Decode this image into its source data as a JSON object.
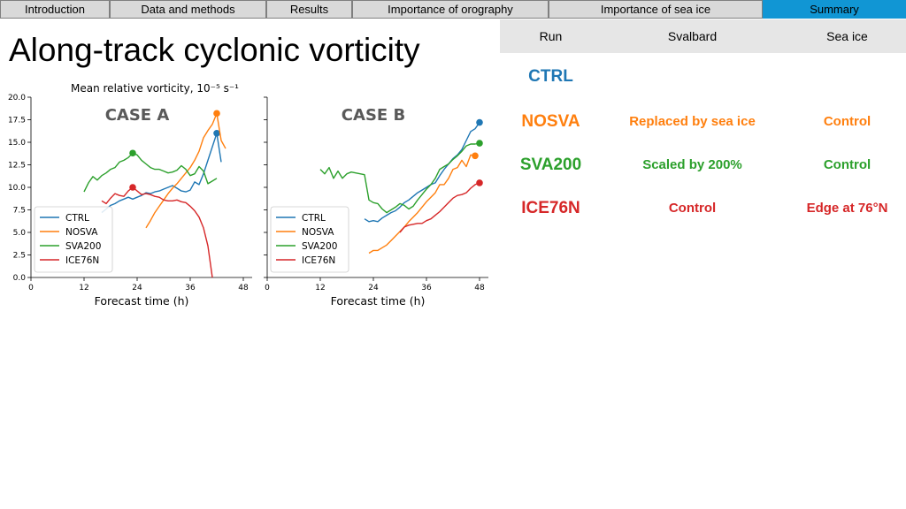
{
  "nav": {
    "tabs": [
      "Introduction",
      "Data and methods",
      "Results",
      "Importance of orography",
      "Importance of sea ice",
      "Summary"
    ],
    "active": "Summary"
  },
  "title": "Along-track cyclonic vorticity",
  "table": {
    "headers": [
      "Run",
      "Svalbard",
      "Sea ice"
    ],
    "rows": [
      {
        "run": "CTRL",
        "svalbard": "",
        "seaice": "",
        "color": "#1f77b4"
      },
      {
        "run": "NOSVA",
        "svalbard": "Replaced by sea ice",
        "seaice": "Control",
        "color": "#ff7f0e"
      },
      {
        "run": "SVA200",
        "svalbard": "Scaled by 200%",
        "seaice": "Control",
        "color": "#2ca02c"
      },
      {
        "run": "ICE76N",
        "svalbard": "Control",
        "seaice": "Edge at 76°N",
        "color": "#d62728"
      }
    ]
  },
  "chart_data": {
    "type": "line",
    "suptitle": "Mean relative vorticity, 10⁻⁵ s⁻¹",
    "xlabel": "Forecast time (h)",
    "xticks": [
      0,
      12,
      24,
      36,
      48
    ],
    "yticks": [
      "0.0",
      "2.5",
      "5.0",
      "7.5",
      "10.0",
      "12.5",
      "15.0",
      "17.5",
      "20.0"
    ],
    "xlim": [
      0,
      50
    ],
    "ylim": [
      0,
      20
    ],
    "series_colors": {
      "CTRL": "#1f77b4",
      "NOSVA": "#ff7f0e",
      "SVA200": "#2ca02c",
      "ICE76N": "#d62728"
    },
    "legend": [
      "CTRL",
      "NOSVA",
      "SVA200",
      "ICE76N"
    ],
    "panels": [
      {
        "label": "CASE A",
        "series": [
          {
            "name": "CTRL",
            "x": [
              16,
              17,
              18,
              19,
              20,
              21,
              22,
              23,
              24,
              25,
              26,
              27,
              28,
              29,
              30,
              31,
              32,
              33,
              34,
              35,
              36,
              37,
              38,
              39,
              40,
              41,
              42,
              43
            ],
            "y": [
              7.2,
              7.6,
              8.0,
              8.2,
              8.5,
              8.7,
              8.9,
              8.7,
              8.9,
              9.1,
              9.4,
              9.3,
              9.5,
              9.6,
              9.8,
              10.0,
              10.2,
              9.9,
              9.6,
              9.5,
              9.7,
              10.6,
              10.3,
              11.5,
              13.0,
              14.5,
              16.0,
              12.8
            ],
            "marker": {
              "x": 42,
              "y": 16.0
            }
          },
          {
            "name": "NOSVA",
            "x": [
              26,
              27,
              28,
              29,
              30,
              31,
              32,
              33,
              34,
              35,
              36,
              37,
              38,
              39,
              40,
              41,
              42,
              43,
              44
            ],
            "y": [
              5.5,
              6.3,
              7.2,
              7.9,
              8.6,
              9.3,
              9.9,
              10.4,
              11.0,
              11.6,
              12.2,
              13.0,
              14.0,
              15.5,
              16.3,
              17.0,
              18.2,
              15.2,
              14.3
            ],
            "marker": {
              "x": 42,
              "y": 18.2
            }
          },
          {
            "name": "SVA200",
            "x": [
              12,
              13,
              14,
              15,
              16,
              17,
              18,
              19,
              20,
              21,
              22,
              23,
              24,
              25,
              26,
              27,
              28,
              29,
              30,
              31,
              32,
              33,
              34,
              35,
              36,
              37,
              38,
              39,
              40,
              41,
              42
            ],
            "y": [
              9.5,
              10.5,
              11.2,
              10.8,
              11.3,
              11.6,
              12.0,
              12.2,
              12.8,
              13.0,
              13.3,
              13.8,
              13.6,
              13.0,
              12.6,
              12.2,
              12.0,
              12.0,
              11.8,
              11.6,
              11.7,
              11.9,
              12.4,
              12.0,
              11.3,
              11.5,
              12.3,
              11.8,
              10.4,
              10.7,
              11.0
            ],
            "marker": {
              "x": 23,
              "y": 13.8
            }
          },
          {
            "name": "ICE76N",
            "x": [
              16,
              17,
              18,
              19,
              20,
              21,
              22,
              23,
              24,
              25,
              26,
              27,
              28,
              29,
              30,
              31,
              32,
              33,
              34,
              35,
              36,
              37,
              38,
              39,
              40,
              41
            ],
            "y": [
              8.5,
              8.2,
              8.8,
              9.3,
              9.1,
              9.0,
              9.6,
              10.0,
              9.6,
              9.2,
              9.3,
              9.2,
              9.0,
              8.9,
              8.6,
              8.5,
              8.5,
              8.6,
              8.4,
              8.3,
              7.9,
              7.4,
              6.7,
              5.5,
              3.5,
              0.0
            ],
            "marker": {
              "x": 23,
              "y": 10.0
            }
          }
        ]
      },
      {
        "label": "CASE B",
        "series": [
          {
            "name": "CTRL",
            "x": [
              22,
              23,
              24,
              25,
              26,
              27,
              28,
              29,
              30,
              31,
              32,
              33,
              34,
              35,
              36,
              37,
              38,
              39,
              40,
              41,
              42,
              43,
              44,
              45,
              46,
              47,
              48
            ],
            "y": [
              6.5,
              6.2,
              6.3,
              6.2,
              6.6,
              6.9,
              7.2,
              7.4,
              7.8,
              8.3,
              8.6,
              9.0,
              9.4,
              9.7,
              10.0,
              10.3,
              10.5,
              11.3,
              12.0,
              12.6,
              13.2,
              13.6,
              14.2,
              15.2,
              16.2,
              16.5,
              17.2
            ],
            "marker": {
              "x": 48,
              "y": 17.2
            }
          },
          {
            "name": "NOSVA",
            "x": [
              23,
              24,
              25,
              26,
              27,
              28,
              29,
              30,
              31,
              32,
              33,
              34,
              35,
              36,
              37,
              38,
              39,
              40,
              41,
              42,
              43,
              44,
              45,
              46,
              47
            ],
            "y": [
              2.7,
              3.0,
              3.0,
              3.3,
              3.6,
              4.1,
              4.6,
              5.1,
              5.6,
              6.2,
              6.7,
              7.2,
              7.8,
              8.4,
              8.9,
              9.4,
              10.3,
              10.3,
              11.0,
              12.0,
              12.2,
              13.0,
              12.3,
              13.6,
              13.5
            ],
            "marker": {
              "x": 47,
              "y": 13.5
            }
          },
          {
            "name": "SVA200",
            "x": [
              12,
              13,
              14,
              15,
              16,
              17,
              18,
              19,
              20,
              21,
              22,
              23,
              24,
              25,
              26,
              27,
              28,
              29,
              30,
              31,
              32,
              33,
              34,
              35,
              36,
              37,
              38,
              39,
              40,
              41,
              42,
              43,
              44,
              45,
              46,
              47,
              48
            ],
            "y": [
              12.0,
              11.5,
              12.2,
              11.0,
              11.8,
              11.0,
              11.5,
              11.7,
              11.6,
              11.5,
              11.4,
              8.6,
              8.3,
              8.2,
              7.6,
              7.2,
              7.5,
              7.8,
              8.2,
              8.0,
              7.6,
              7.9,
              8.6,
              9.2,
              9.8,
              10.3,
              11.0,
              12.0,
              12.3,
              12.6,
              13.1,
              13.5,
              14.0,
              14.6,
              14.8,
              14.8,
              14.9
            ],
            "marker": {
              "x": 48,
              "y": 14.9
            }
          },
          {
            "name": "ICE76N",
            "x": [
              30,
              31,
              32,
              33,
              34,
              35,
              36,
              37,
              38,
              39,
              40,
              41,
              42,
              43,
              44,
              45,
              46,
              47,
              48
            ],
            "y": [
              5.0,
              5.6,
              5.8,
              5.9,
              6.0,
              6.0,
              6.3,
              6.5,
              6.9,
              7.3,
              7.8,
              8.3,
              8.8,
              9.1,
              9.2,
              9.4,
              9.9,
              10.3,
              10.5
            ],
            "marker": {
              "x": 48,
              "y": 10.5
            }
          }
        ]
      }
    ]
  }
}
